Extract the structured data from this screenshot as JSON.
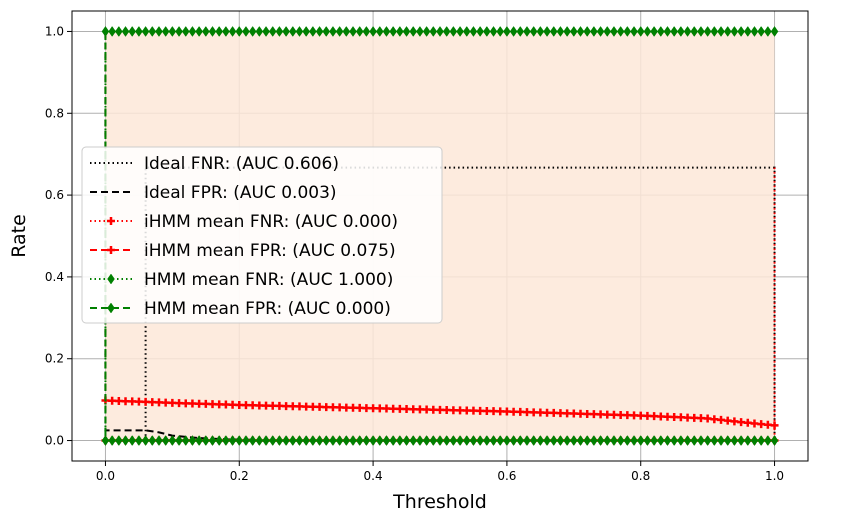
{
  "chart_data": {
    "type": "line",
    "title": "",
    "xlabel": "Threshold",
    "ylabel": "Rate",
    "xlim": [
      -0.05,
      1.05
    ],
    "ylim": [
      -0.05,
      1.05
    ],
    "xticks": [
      0.0,
      0.2,
      0.4,
      0.6,
      0.8,
      1.0
    ],
    "xtick_labels": [
      "0.0",
      "0.2",
      "0.4",
      "0.6",
      "0.8",
      "1.0"
    ],
    "yticks": [
      0.0,
      0.2,
      0.4,
      0.6,
      0.8,
      1.0
    ],
    "ytick_labels": [
      "0.0",
      "0.2",
      "0.4",
      "0.6",
      "0.8",
      "1.0"
    ],
    "grid": true,
    "legend_position": "center-left",
    "shaded_region": {
      "x": [
        0.0,
        1.0
      ],
      "y": [
        0.0,
        1.0
      ],
      "color": "#fde8d8"
    },
    "series": [
      {
        "name": "Ideal FNR: (AUC 0.606)",
        "color": "#000000",
        "dash": "dotted",
        "marker": "none",
        "x": [
          0.0,
          0.06,
          0.06,
          1.0,
          1.0
        ],
        "y": [
          0.0,
          0.0,
          0.667,
          0.667,
          0.0
        ]
      },
      {
        "name": "Ideal FPR: (AUC 0.003)",
        "color": "#000000",
        "dash": "dashed",
        "marker": "none",
        "x": [
          0.0,
          0.0,
          0.06,
          0.08,
          0.1,
          0.14,
          0.18,
          0.22
        ],
        "y": [
          1.0,
          0.025,
          0.025,
          0.02,
          0.012,
          0.006,
          0.003,
          0.002
        ]
      },
      {
        "name": "iHMM mean FNR: (AUC 0.000)",
        "color": "#ff0000",
        "dash": "dotted",
        "marker": "plus",
        "x": [
          0.0,
          0.1,
          0.2,
          0.3,
          0.4,
          0.5,
          0.6,
          0.7,
          0.8,
          0.9,
          1.0,
          1.0
        ],
        "y": [
          0.0,
          0.0,
          0.0,
          0.0,
          0.0,
          0.0,
          0.0,
          0.0,
          0.0,
          0.0,
          0.0,
          0.667
        ]
      },
      {
        "name": "iHMM mean FPR: (AUC 0.075)",
        "color": "#ff0000",
        "dash": "dashed",
        "marker": "plus",
        "x": [
          0.0,
          0.0,
          0.1,
          0.2,
          0.3,
          0.4,
          0.5,
          0.6,
          0.7,
          0.8,
          0.9,
          0.95,
          1.0
        ],
        "y": [
          1.0,
          0.098,
          0.092,
          0.087,
          0.083,
          0.079,
          0.075,
          0.071,
          0.066,
          0.061,
          0.054,
          0.045,
          0.037
        ]
      },
      {
        "name": "HMM mean FNR: (AUC 1.000)",
        "color": "#008000",
        "dash": "dotted",
        "marker": "diamond",
        "x": [
          0.0,
          0.0,
          1.0
        ],
        "y": [
          0.0,
          1.0,
          1.0
        ]
      },
      {
        "name": "HMM mean FPR: (AUC 0.000)",
        "color": "#008000",
        "dash": "dashed",
        "marker": "diamond",
        "x": [
          0.0,
          0.0,
          1.0
        ],
        "y": [
          1.0,
          0.0,
          0.0
        ]
      }
    ]
  }
}
